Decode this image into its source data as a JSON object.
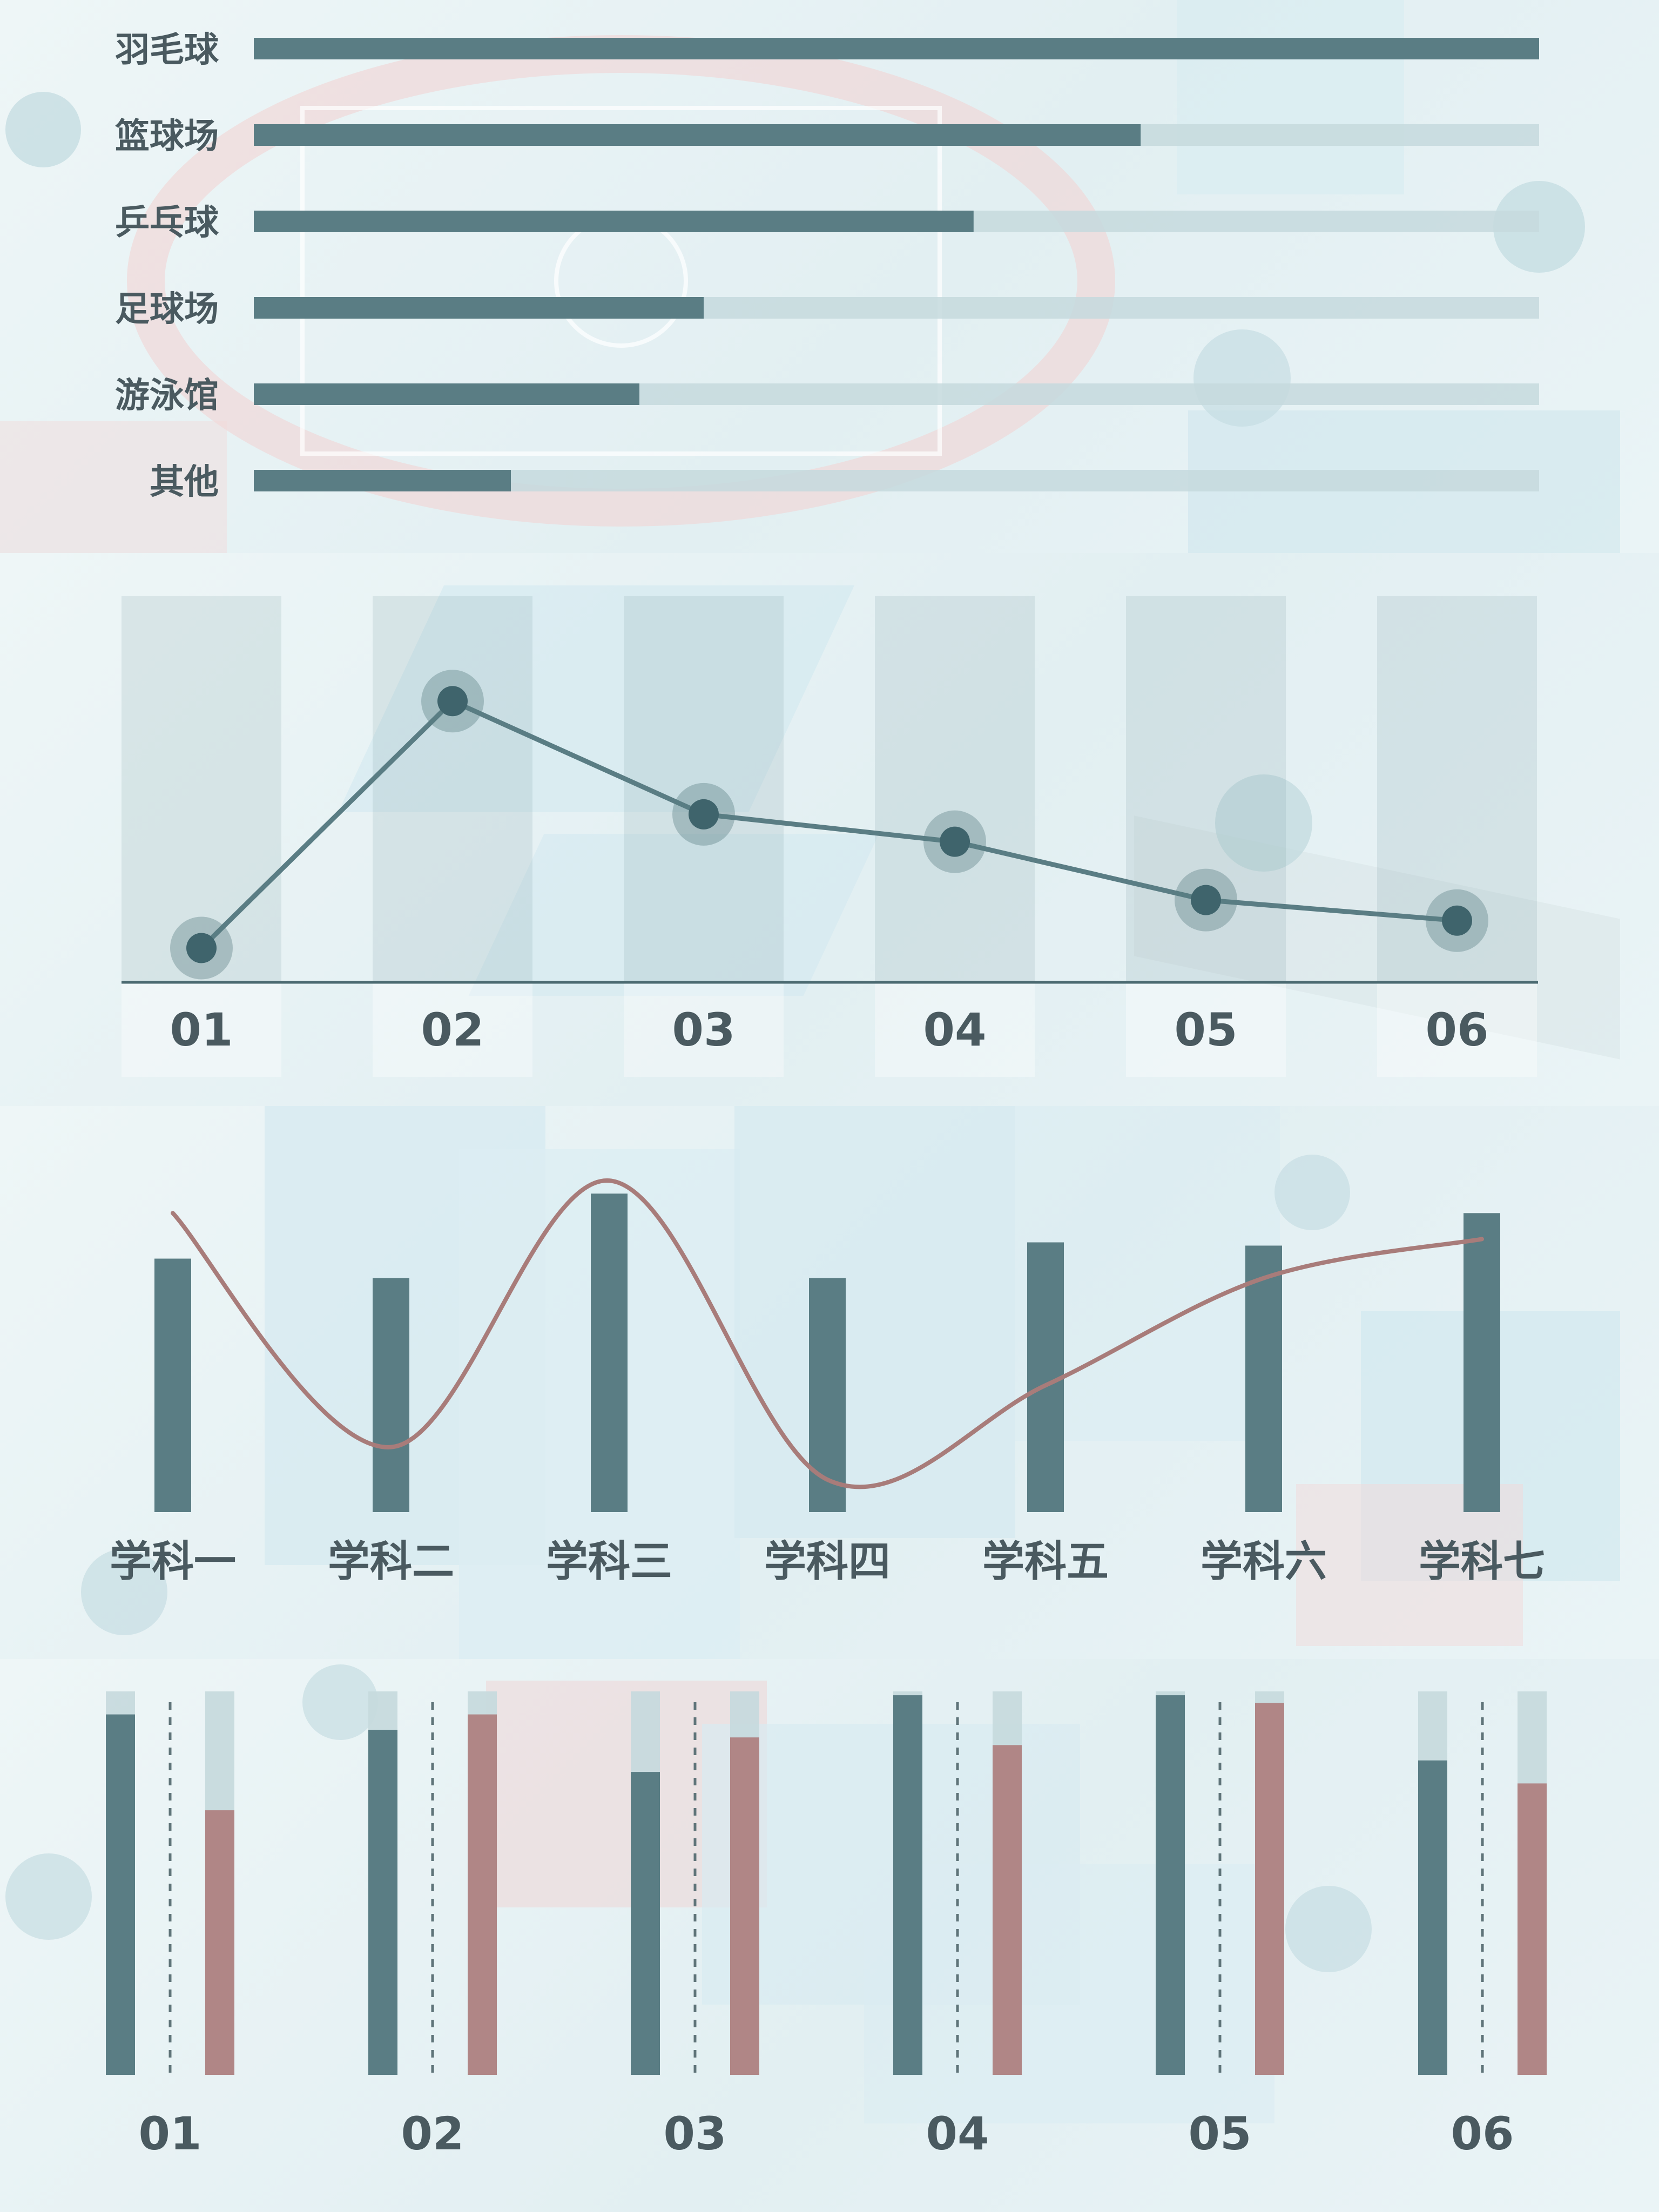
{
  "colors": {
    "teal": "#5a7d84",
    "teal_dark": "#3f646c",
    "track": "#c5d9dd",
    "rose": "#b08686",
    "rose_line": "#a87c7a",
    "axis": "#4b6a71",
    "label": "#4a5a60"
  },
  "chart_data": [
    {
      "type": "bar",
      "orientation": "horizontal",
      "categories": [
        "羽毛球",
        "篮球场",
        "乒乓球",
        "足球场",
        "游泳馆",
        "其他"
      ],
      "values": [
        100,
        69,
        56,
        35,
        30,
        20
      ],
      "xlim": [
        0,
        100
      ],
      "grid": false,
      "legend": "none"
    },
    {
      "type": "line",
      "categories": [
        "01",
        "02",
        "03",
        "04",
        "05",
        "06"
      ],
      "values": [
        10,
        82,
        49,
        41,
        24,
        18
      ],
      "ylim": [
        0,
        100
      ],
      "grid": false,
      "legend": "none"
    },
    {
      "type": "bar",
      "categories": [
        "学科一",
        "学科二",
        "学科三",
        "学科四",
        "学科五",
        "学科六",
        "学科七"
      ],
      "series": [
        {
          "values": [
            78,
            72,
            98,
            72,
            83,
            82,
            92
          ]
        },
        {
          "type": "line",
          "values": [
            92,
            20,
            102,
            10,
            39,
            72,
            84
          ]
        }
      ],
      "ylim": [
        0,
        110
      ],
      "grid": false,
      "legend": "none"
    },
    {
      "type": "bar",
      "stacked_to_max": true,
      "categories": [
        "01",
        "02",
        "03",
        "04",
        "05",
        "06"
      ],
      "series": [
        {
          "values": [
            94,
            90,
            79,
            99,
            99,
            82
          ]
        },
        {
          "values": [
            69,
            94,
            88,
            86,
            97,
            76
          ]
        }
      ],
      "ylim": [
        0,
        100
      ],
      "grid": false,
      "legend": "none"
    }
  ]
}
